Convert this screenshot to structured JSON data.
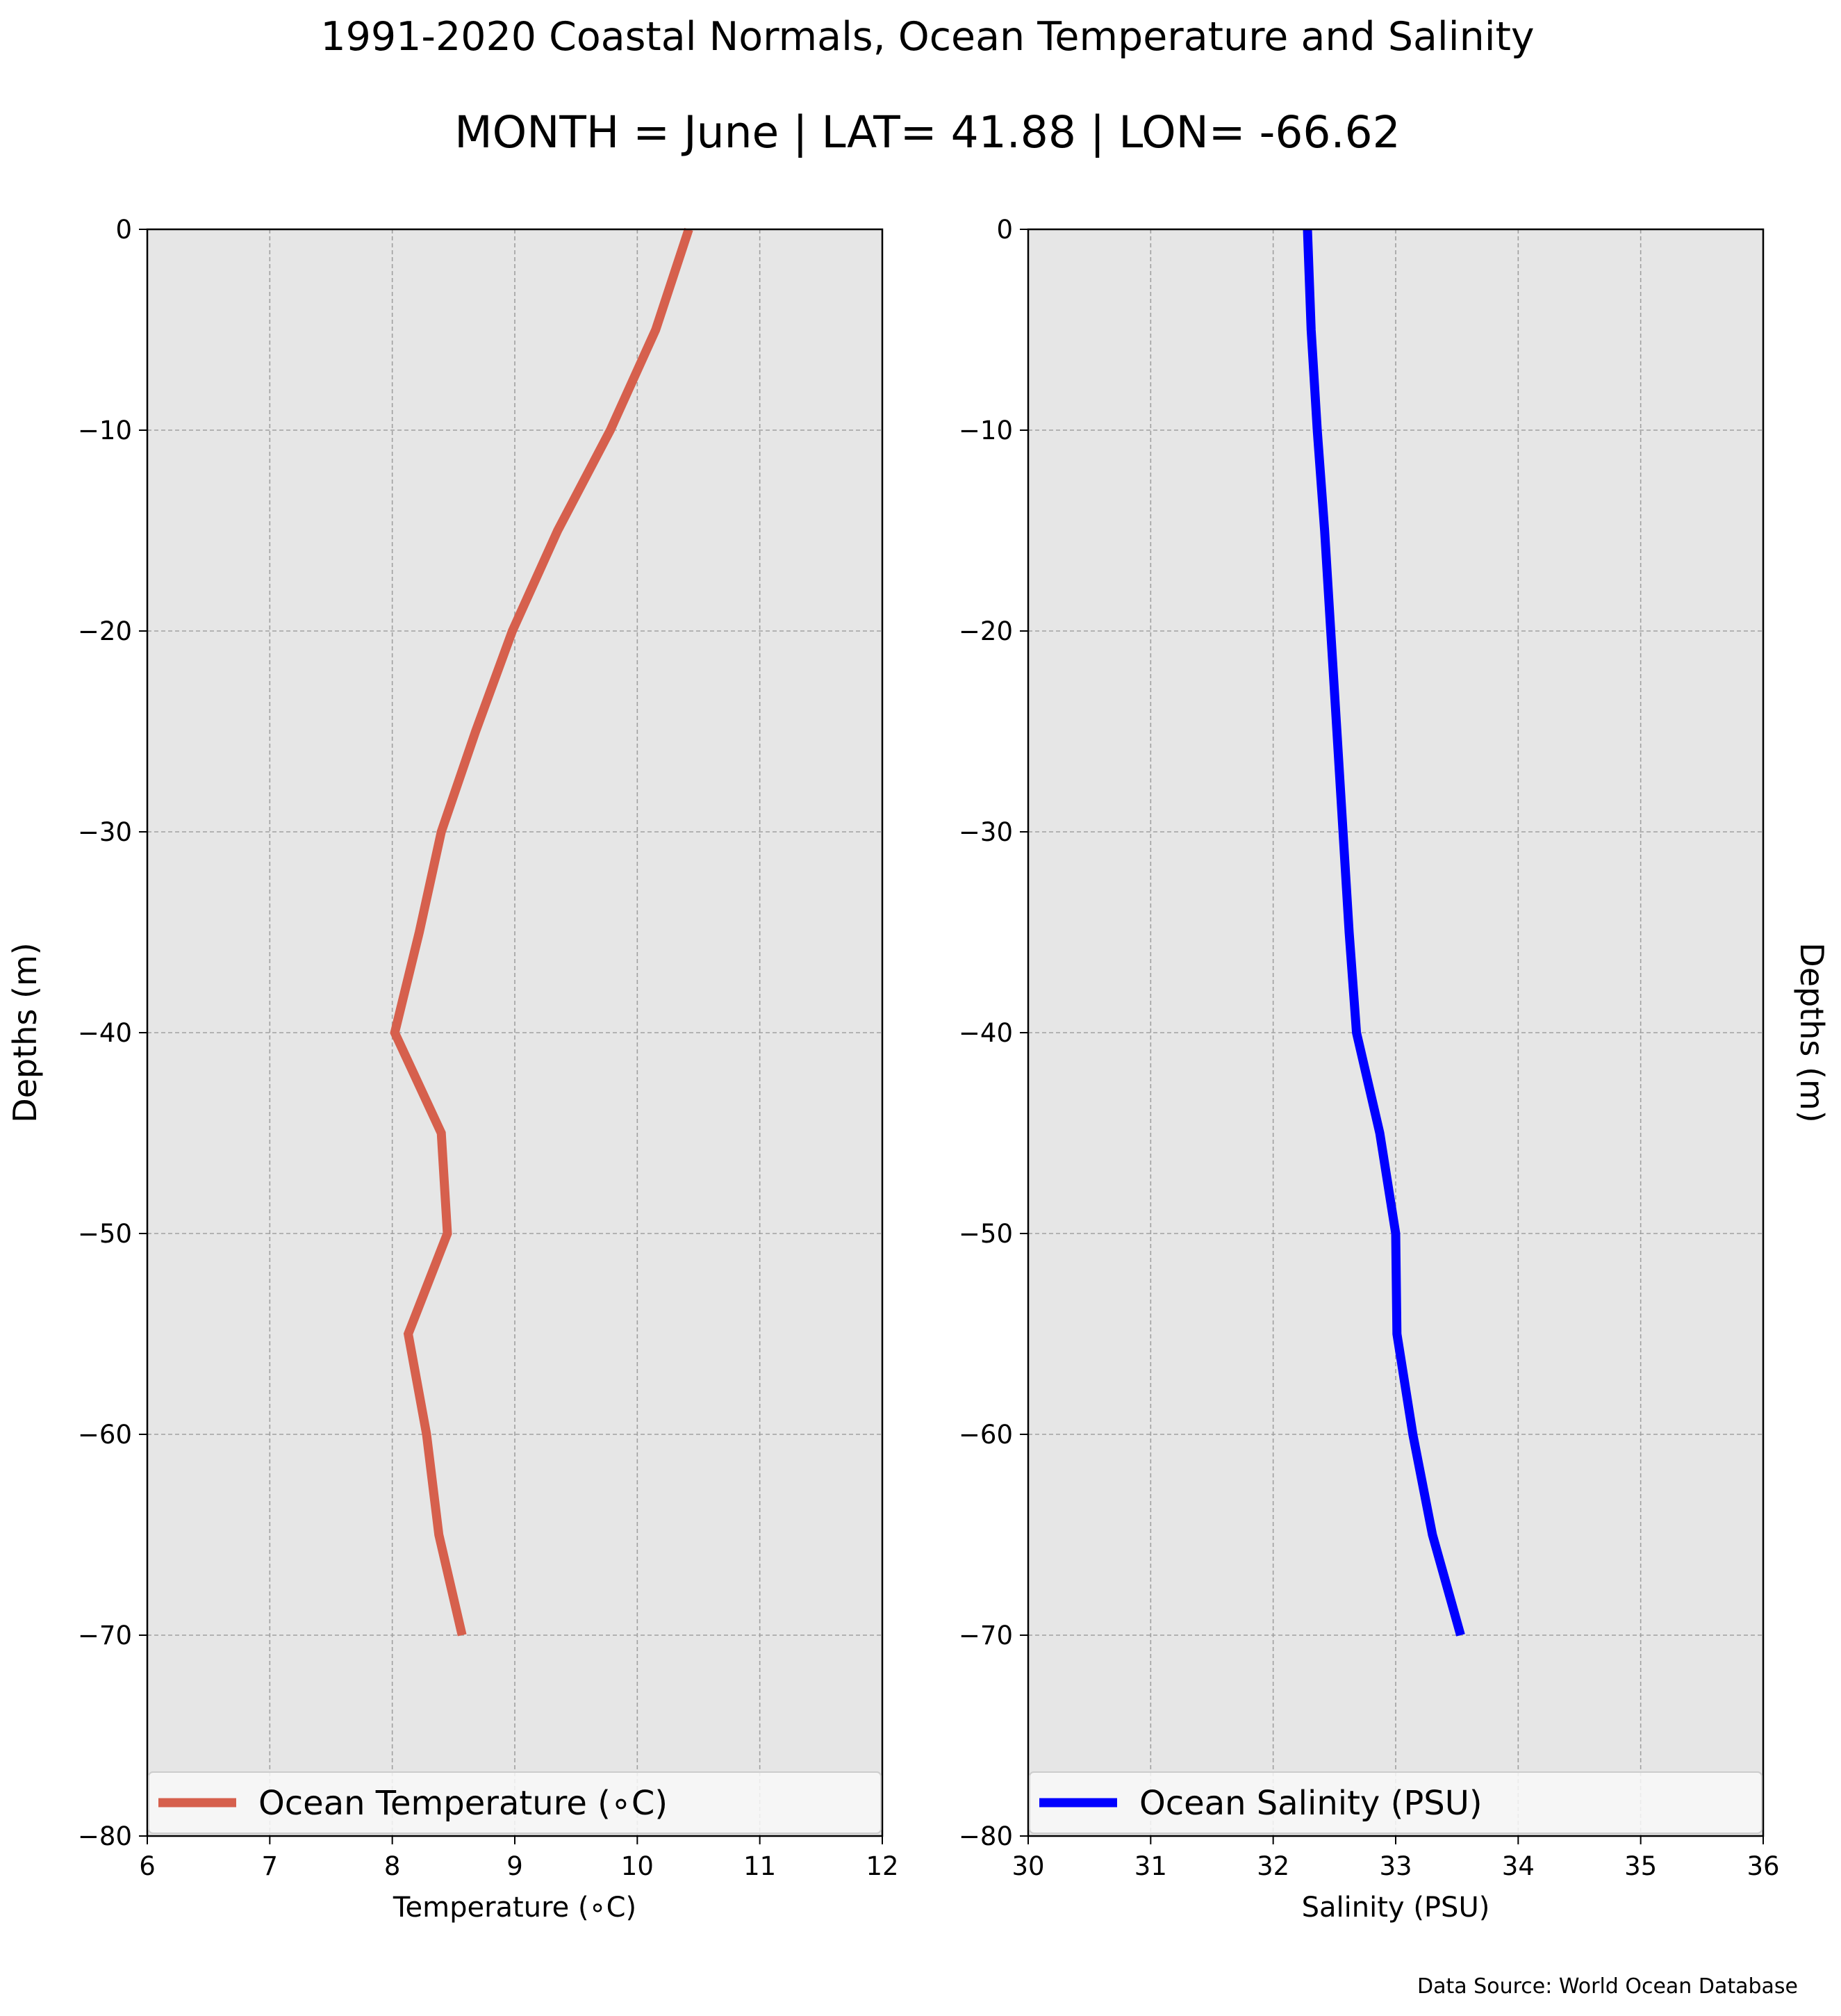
{
  "figure": {
    "title": "1991-2020 Coastal Normals, Ocean Temperature and Salinity",
    "subtitle": "MONTH = June | LAT= 41.88 | LON= -66.62",
    "source": "Data Source: World Ocean Database"
  },
  "colors": {
    "plot_background": "#e6e6e6",
    "grid": "#a0a0a0",
    "temperature_line": "#d6604d",
    "salinity_line": "#0000ff"
  },
  "chart_data": [
    {
      "type": "line",
      "xlabel": "Temperature ($^\\circ$C)",
      "xlabel_display": "Temperature (∘C)",
      "ylabel": "Depths (m)",
      "xlim": [
        6,
        12
      ],
      "ylim": [
        -80,
        0
      ],
      "xticks": [
        6,
        7,
        8,
        9,
        10,
        11,
        12
      ],
      "yticks": [
        0,
        -10,
        -20,
        -30,
        -40,
        -50,
        -60,
        -70,
        -80
      ],
      "grid": true,
      "legend_position": "lower center",
      "series": [
        {
          "name": "Ocean Temperature (∘C)",
          "color": "#d6604d",
          "x": [
            10.42,
            10.15,
            9.78,
            9.35,
            8.98,
            8.68,
            8.4,
            8.22,
            8.02,
            8.4,
            8.45,
            8.13,
            8.28,
            8.38,
            8.57
          ],
          "y": [
            0,
            -5,
            -10,
            -15,
            -20,
            -25,
            -30,
            -35,
            -40,
            -45,
            -50,
            -55,
            -60,
            -65,
            -70
          ]
        }
      ]
    },
    {
      "type": "line",
      "xlabel": "Salinity (PSU)",
      "ylabel": "Depths (m)",
      "xlim": [
        30,
        36
      ],
      "ylim": [
        -80,
        0
      ],
      "xticks": [
        30,
        31,
        32,
        33,
        34,
        35,
        36
      ],
      "yticks": [
        0,
        -10,
        -20,
        -30,
        -40,
        -50,
        -60,
        -70,
        -80
      ],
      "grid": true,
      "legend_position": "lower center",
      "series": [
        {
          "name": "Ocean Salinity (PSU)",
          "color": "#0000ff",
          "x": [
            32.28,
            32.31,
            32.36,
            32.42,
            32.47,
            32.52,
            32.57,
            32.62,
            32.68,
            32.87,
            33.0,
            33.01,
            33.14,
            33.3,
            33.53
          ],
          "y": [
            0,
            -5,
            -10,
            -15,
            -20,
            -25,
            -30,
            -35,
            -40,
            -45,
            -50,
            -55,
            -60,
            -65,
            -70
          ]
        }
      ]
    }
  ]
}
